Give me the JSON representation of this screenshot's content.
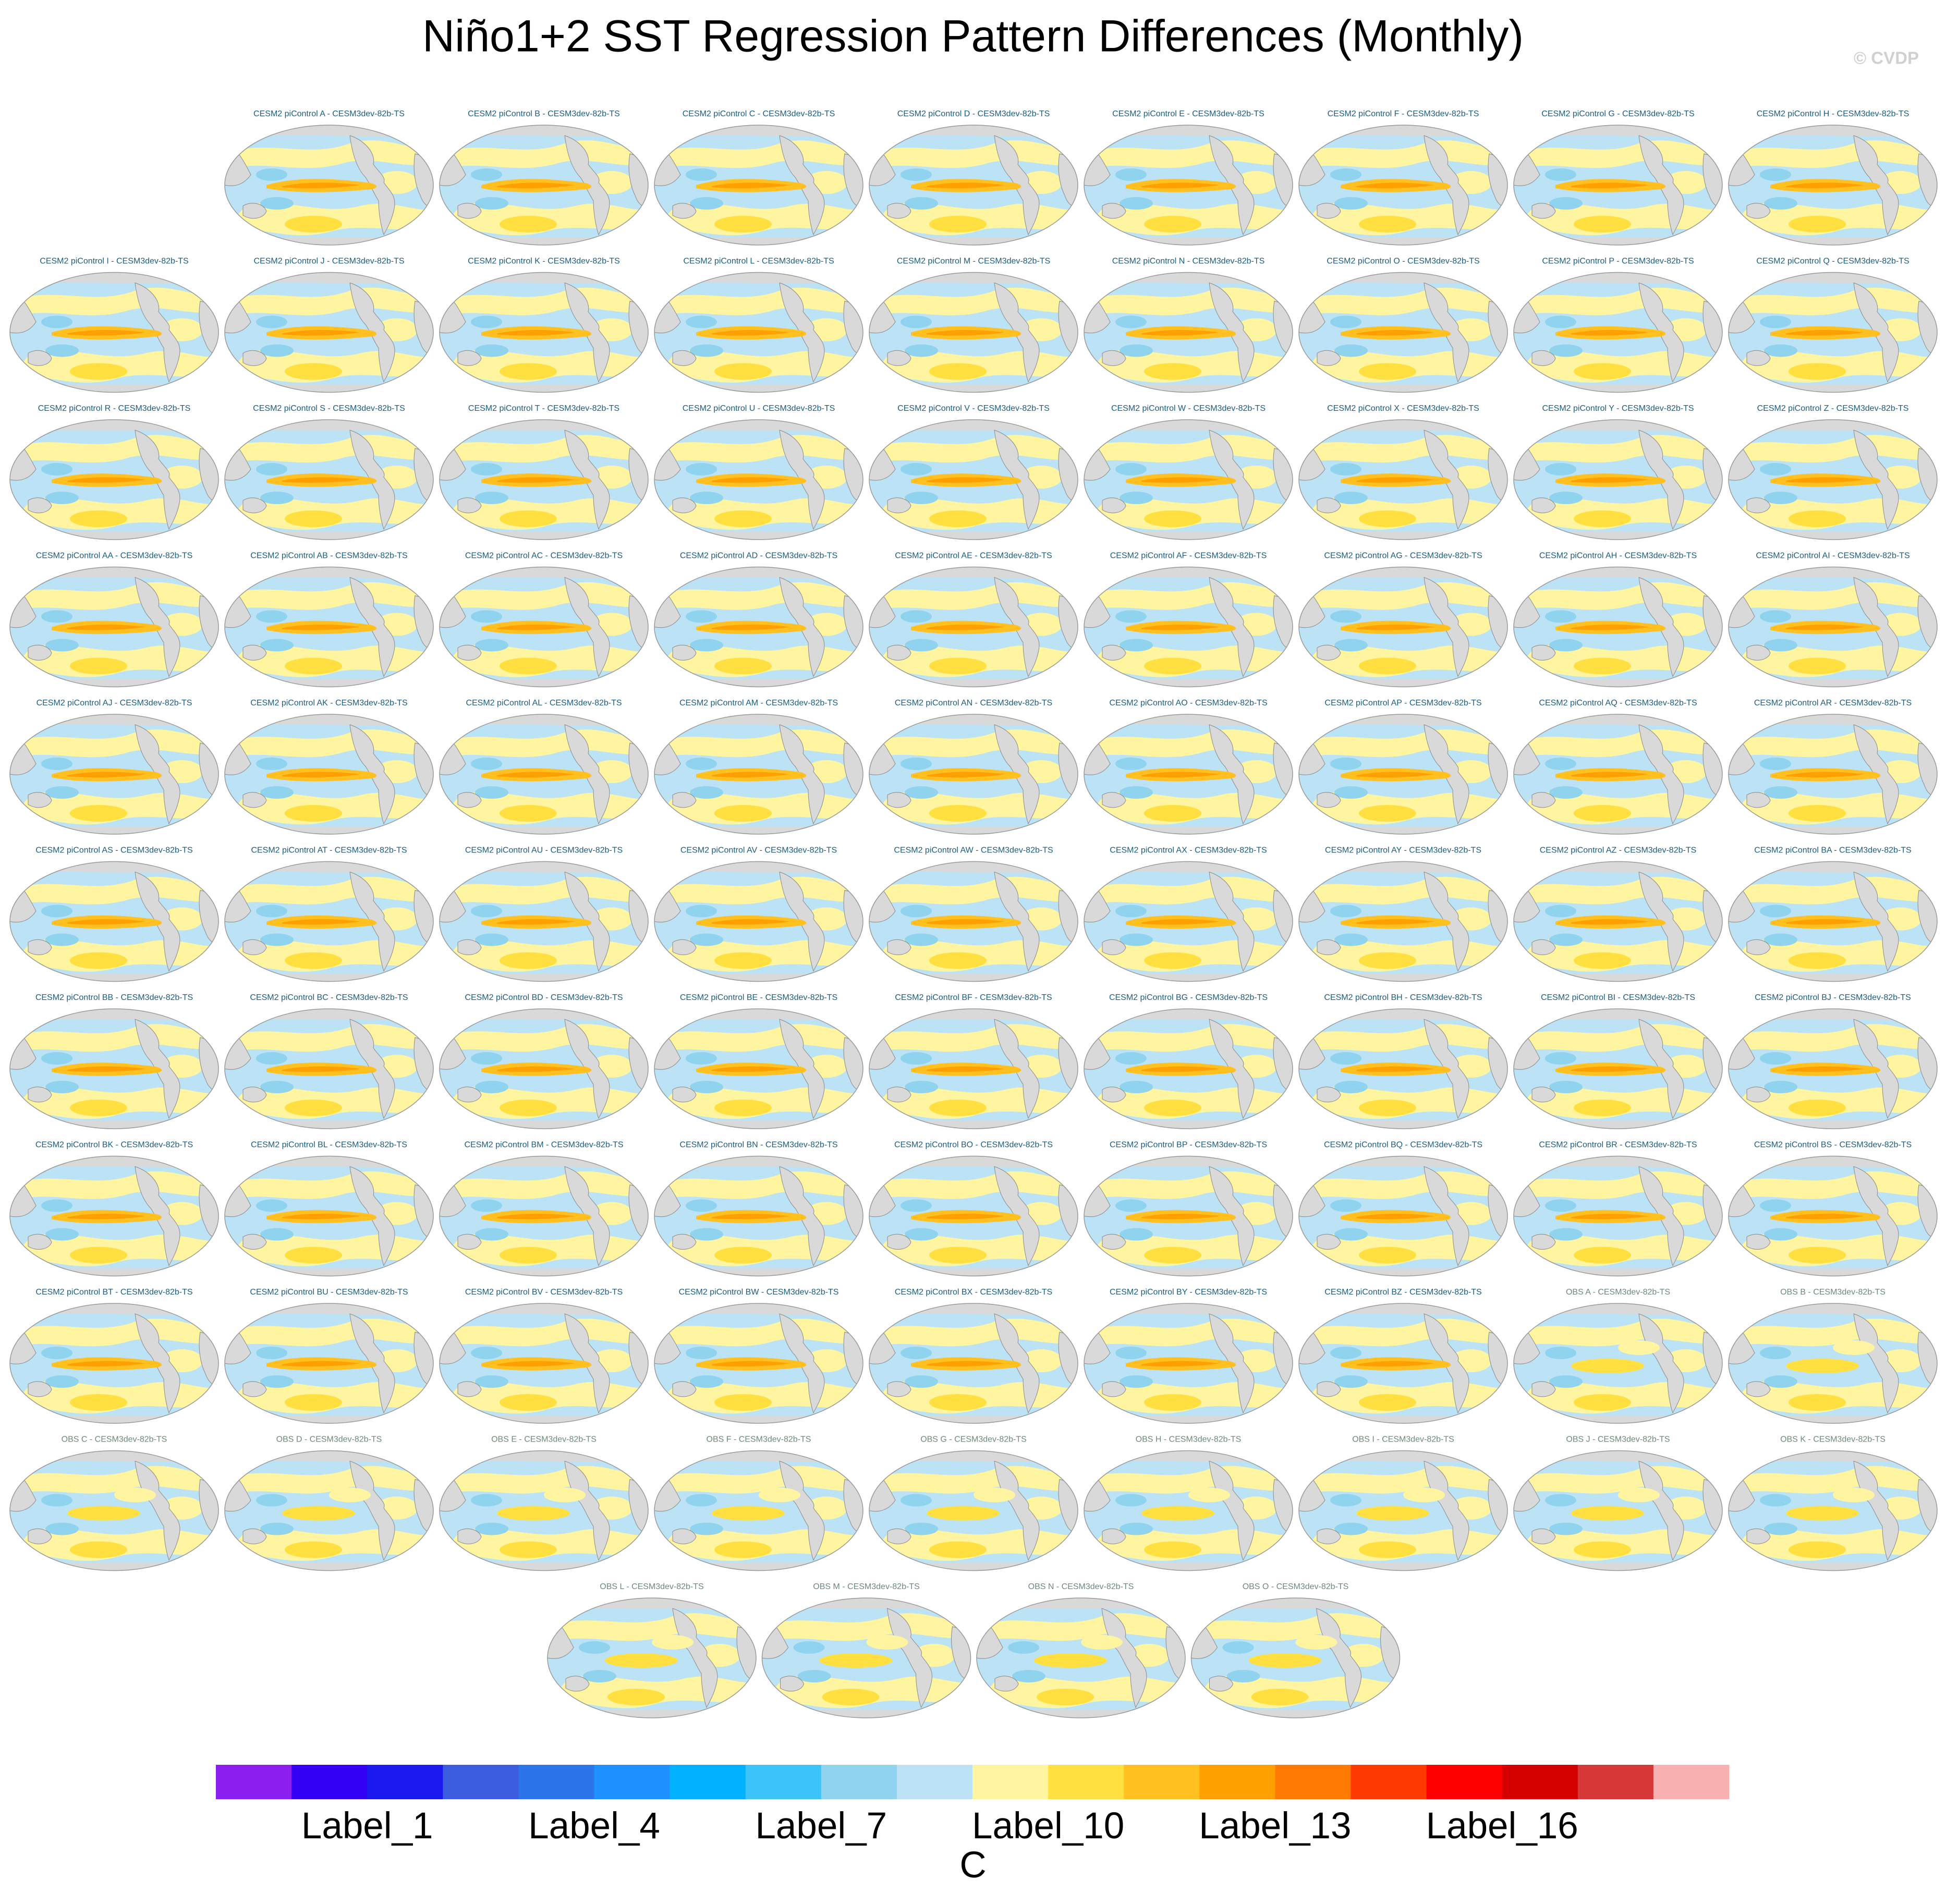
{
  "title": "Niño1+2 SST Regression Pattern Differences (Monthly)",
  "watermark": "© CVDP",
  "panels": [
    {
      "label": "CESM2 piControl A - CESM3dev-82b-TS"
    },
    {
      "label": "CESM2 piControl B - CESM3dev-82b-TS"
    },
    {
      "label": "CESM2 piControl C - CESM3dev-82b-TS"
    },
    {
      "label": "CESM2 piControl D - CESM3dev-82b-TS"
    },
    {
      "label": "CESM2 piControl E - CESM3dev-82b-TS"
    },
    {
      "label": "CESM2 piControl F - CESM3dev-82b-TS"
    },
    {
      "label": "CESM2 piControl G - CESM3dev-82b-TS"
    },
    {
      "label": "CESM2 piControl H - CESM3dev-82b-TS"
    },
    {
      "label": "CESM2 piControl I - CESM3dev-82b-TS"
    },
    {
      "label": "CESM2 piControl J - CESM3dev-82b-TS"
    },
    {
      "label": "CESM2 piControl K - CESM3dev-82b-TS"
    },
    {
      "label": "CESM2 piControl L - CESM3dev-82b-TS"
    },
    {
      "label": "CESM2 piControl M - CESM3dev-82b-TS"
    },
    {
      "label": "CESM2 piControl N - CESM3dev-82b-TS"
    },
    {
      "label": "CESM2 piControl O - CESM3dev-82b-TS"
    },
    {
      "label": "CESM2 piControl P - CESM3dev-82b-TS"
    },
    {
      "label": "CESM2 piControl Q - CESM3dev-82b-TS"
    },
    {
      "label": "CESM2 piControl R - CESM3dev-82b-TS"
    },
    {
      "label": "CESM2 piControl S - CESM3dev-82b-TS"
    },
    {
      "label": "CESM2 piControl T - CESM3dev-82b-TS"
    },
    {
      "label": "CESM2 piControl U - CESM3dev-82b-TS"
    },
    {
      "label": "CESM2 piControl V - CESM3dev-82b-TS"
    },
    {
      "label": "CESM2 piControl W - CESM3dev-82b-TS"
    },
    {
      "label": "CESM2 piControl X - CESM3dev-82b-TS"
    },
    {
      "label": "CESM2 piControl Y - CESM3dev-82b-TS"
    },
    {
      "label": "CESM2 piControl Z - CESM3dev-82b-TS"
    },
    {
      "label": "CESM2 piControl AA - CESM3dev-82b-TS"
    },
    {
      "label": "CESM2 piControl AB - CESM3dev-82b-TS"
    },
    {
      "label": "CESM2 piControl AC - CESM3dev-82b-TS"
    },
    {
      "label": "CESM2 piControl AD - CESM3dev-82b-TS"
    },
    {
      "label": "CESM2 piControl AE - CESM3dev-82b-TS"
    },
    {
      "label": "CESM2 piControl AF - CESM3dev-82b-TS"
    },
    {
      "label": "CESM2 piControl AG - CESM3dev-82b-TS"
    },
    {
      "label": "CESM2 piControl AH - CESM3dev-82b-TS"
    },
    {
      "label": "CESM2 piControl AI - CESM3dev-82b-TS"
    },
    {
      "label": "CESM2 piControl AJ - CESM3dev-82b-TS"
    },
    {
      "label": "CESM2 piControl AK - CESM3dev-82b-TS"
    },
    {
      "label": "CESM2 piControl AL - CESM3dev-82b-TS"
    },
    {
      "label": "CESM2 piControl AM - CESM3dev-82b-TS"
    },
    {
      "label": "CESM2 piControl AN - CESM3dev-82b-TS"
    },
    {
      "label": "CESM2 piControl AO - CESM3dev-82b-TS"
    },
    {
      "label": "CESM2 piControl AP - CESM3dev-82b-TS"
    },
    {
      "label": "CESM2 piControl AQ - CESM3dev-82b-TS"
    },
    {
      "label": "CESM2 piControl AR - CESM3dev-82b-TS"
    },
    {
      "label": "CESM2 piControl AS - CESM3dev-82b-TS"
    },
    {
      "label": "CESM2 piControl AT - CESM3dev-82b-TS"
    },
    {
      "label": "CESM2 piControl AU - CESM3dev-82b-TS"
    },
    {
      "label": "CESM2 piControl AV - CESM3dev-82b-TS"
    },
    {
      "label": "CESM2 piControl AW - CESM3dev-82b-TS"
    },
    {
      "label": "CESM2 piControl AX - CESM3dev-82b-TS"
    },
    {
      "label": "CESM2 piControl AY - CESM3dev-82b-TS"
    },
    {
      "label": "CESM2 piControl AZ - CESM3dev-82b-TS"
    },
    {
      "label": "CESM2 piControl BA - CESM3dev-82b-TS"
    },
    {
      "label": "CESM2 piControl BB - CESM3dev-82b-TS"
    },
    {
      "label": "CESM2 piControl BC - CESM3dev-82b-TS"
    },
    {
      "label": "CESM2 piControl BD - CESM3dev-82b-TS"
    },
    {
      "label": "CESM2 piControl BE - CESM3dev-82b-TS"
    },
    {
      "label": "CESM2 piControl BF - CESM3dev-82b-TS"
    },
    {
      "label": "CESM2 piControl BG - CESM3dev-82b-TS"
    },
    {
      "label": "CESM2 piControl BH - CESM3dev-82b-TS"
    },
    {
      "label": "CESM2 piControl BI - CESM3dev-82b-TS"
    },
    {
      "label": "CESM2 piControl BJ - CESM3dev-82b-TS"
    },
    {
      "label": "CESM2 piControl BK - CESM3dev-82b-TS"
    },
    {
      "label": "CESM2 piControl BL - CESM3dev-82b-TS"
    },
    {
      "label": "CESM2 piControl BM - CESM3dev-82b-TS"
    },
    {
      "label": "CESM2 piControl BN - CESM3dev-82b-TS"
    },
    {
      "label": "CESM2 piControl BO - CESM3dev-82b-TS"
    },
    {
      "label": "CESM2 piControl BP - CESM3dev-82b-TS"
    },
    {
      "label": "CESM2 piControl BQ - CESM3dev-82b-TS"
    },
    {
      "label": "CESM2 piControl BR - CESM3dev-82b-TS"
    },
    {
      "label": "CESM2 piControl BS - CESM3dev-82b-TS"
    },
    {
      "label": "CESM2 piControl BT - CESM3dev-82b-TS"
    },
    {
      "label": "CESM2 piControl BU - CESM3dev-82b-TS"
    },
    {
      "label": "CESM2 piControl BV - CESM3dev-82b-TS"
    },
    {
      "label": "CESM2 piControl BW - CESM3dev-82b-TS"
    },
    {
      "label": "CESM2 piControl BX - CESM3dev-82b-TS"
    },
    {
      "label": "CESM2 piControl BY - CESM3dev-82b-TS"
    },
    {
      "label": "CESM2 piControl BZ - CESM3dev-82b-TS"
    },
    {
      "label": "OBS A - CESM3dev-82b-TS"
    },
    {
      "label": "OBS B - CESM3dev-82b-TS"
    },
    {
      "label": "OBS C - CESM3dev-82b-TS"
    },
    {
      "label": "OBS D - CESM3dev-82b-TS"
    },
    {
      "label": "OBS E - CESM3dev-82b-TS"
    },
    {
      "label": "OBS F - CESM3dev-82b-TS"
    },
    {
      "label": "OBS G - CESM3dev-82b-TS"
    },
    {
      "label": "OBS H - CESM3dev-82b-TS"
    },
    {
      "label": "OBS I - CESM3dev-82b-TS"
    },
    {
      "label": "OBS J - CESM3dev-82b-TS"
    },
    {
      "label": "OBS K - CESM3dev-82b-TS"
    },
    {
      "label": "OBS L - CESM3dev-82b-TS"
    },
    {
      "label": "OBS M - CESM3dev-82b-TS"
    },
    {
      "label": "OBS N - CESM3dev-82b-TS"
    },
    {
      "label": "OBS O - CESM3dev-82b-TS"
    }
  ],
  "colorbar": {
    "colors": [
      "#8a1ff0",
      "#3300f5",
      "#1a1aee",
      "#3c5de0",
      "#2c74ea",
      "#1e90ff",
      "#00b2ff",
      "#3cc3f7",
      "#8fd3ee",
      "#bce3f5",
      "#fff5a0",
      "#ffe040",
      "#ffc020",
      "#ffa000",
      "#ff7a00",
      "#ff3a00",
      "#ff0000",
      "#d40000",
      "#d63838",
      "#f8b0b0"
    ],
    "labels": [
      "Label_1",
      "Label_4",
      "Label_7",
      "Label_10",
      "Label_13",
      "Label_16"
    ],
    "unit": "C"
  }
}
